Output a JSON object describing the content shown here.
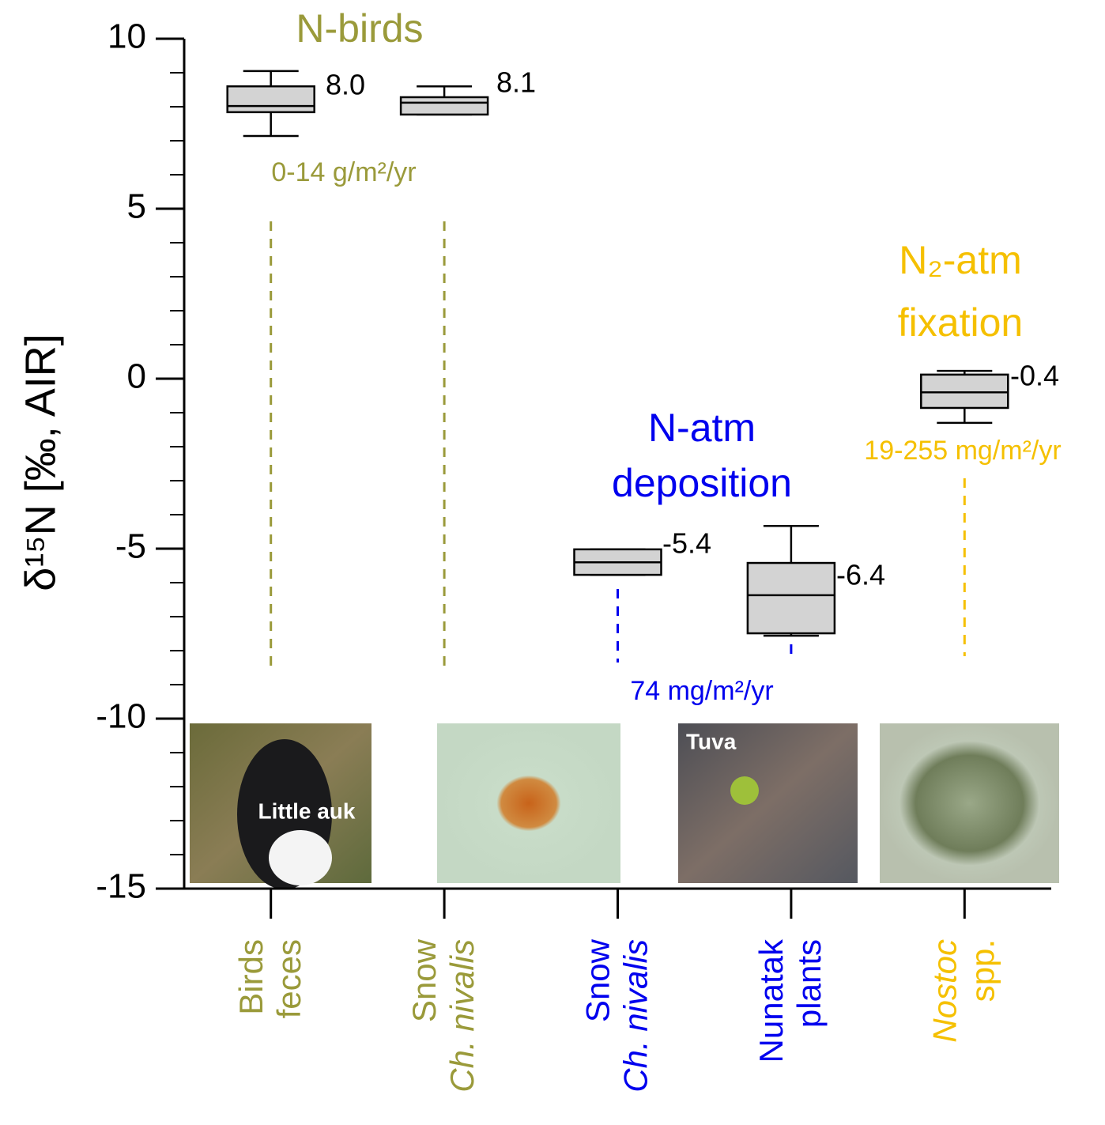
{
  "chart_data": {
    "type": "box",
    "ylabel": "δ¹⁵N [‰, AIR]",
    "ylim": [
      -15,
      10
    ],
    "yticks": [
      -15,
      -10,
      -5,
      0,
      5,
      10
    ],
    "minor_yticks": [
      -14,
      -13,
      -12,
      -11,
      -9,
      -8,
      -7,
      -6,
      -4,
      -3,
      -2,
      -1,
      1,
      2,
      3,
      4,
      6,
      7,
      8,
      9
    ],
    "categories": [
      [
        "Birds",
        "feces"
      ],
      [
        "Snow",
        "Ch. nivalis"
      ],
      [
        "Snow",
        "Ch. nivalis"
      ],
      [
        "Nunatak",
        "plants"
      ],
      [
        "Nostoc",
        "spp."
      ]
    ],
    "category_colors": [
      "#9a9a3a",
      "#9a9a3a",
      "#0000ee",
      "#0000ee",
      "#f5c000"
    ],
    "italic_line": [
      null,
      1,
      1,
      null,
      0
    ],
    "box_color": "#d3d3d3",
    "boxes": [
      {
        "whisker_low": 7.14,
        "q1": 7.84,
        "median": 8.02,
        "q3": 8.6,
        "whisker_high": 9.05
      },
      {
        "whisker_low": 7.77,
        "q1": 7.77,
        "median": 8.12,
        "q3": 8.28,
        "whisker_high": 8.6
      },
      {
        "whisker_low": -5.77,
        "q1": -5.77,
        "median": -5.4,
        "q3": -5.02,
        "whisker_high": -5.02
      },
      {
        "whisker_low": -7.56,
        "q1": -7.49,
        "median": -6.37,
        "q3": -5.42,
        "whisker_high": -4.33
      },
      {
        "whisker_low": -1.3,
        "q1": -0.86,
        "median": -0.4,
        "q3": 0.12,
        "whisker_high": 0.23
      }
    ],
    "value_labels": [
      "8.0",
      "8.1",
      "-5.4",
      "-6.4",
      "-0.4"
    ],
    "annotations": [
      {
        "text": "N-birds",
        "color": "#9a9a3a"
      },
      {
        "text": "0-14  g/m²/yr",
        "color": "#9a9a3a"
      },
      {
        "text": "N-atm",
        "color": "#0000ee"
      },
      {
        "text": "deposition",
        "color": "#0000ee"
      },
      {
        "text": "74  mg/m²/yr",
        "color": "#0000ee"
      },
      {
        "text": "N₂-atm",
        "color": "#f5c000"
      },
      {
        "text": "fixation",
        "color": "#f5c000"
      },
      {
        "text": "19-255 mg/m²/yr",
        "color": "#f5c000"
      }
    ],
    "image_labels": [
      "Little auk",
      "Tuva"
    ]
  }
}
